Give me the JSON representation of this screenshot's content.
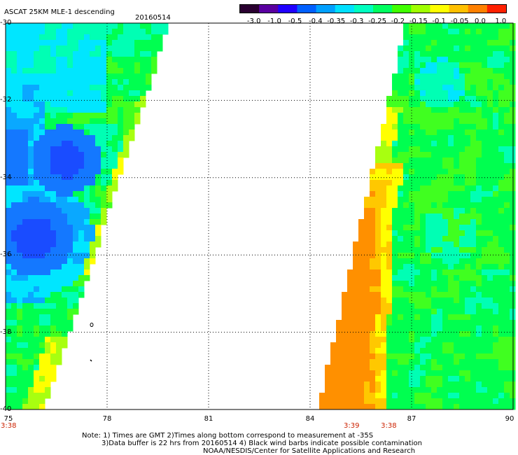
{
  "header": {
    "title": "ASCAT 25KM MLE-1 descending",
    "date": "20160514"
  },
  "colorbar": {
    "labels": [
      "-3.0",
      "-1.0",
      "-0.5",
      "-0.4",
      "-0.35",
      "-0.3",
      "-0.25",
      "-0.2",
      "-0.15",
      "-0.1",
      "-0.05",
      "0.0",
      "1.0"
    ],
    "colors": [
      "#2a0030",
      "#5a00a0",
      "#2000ff",
      "#0060ff",
      "#00a0ff",
      "#00e0ff",
      "#00ffc0",
      "#00ff60",
      "#40ff00",
      "#a0ff00",
      "#ffff00",
      "#ffc000",
      "#ff8000",
      "#ff2000"
    ]
  },
  "map": {
    "lat_labels": [
      "-30",
      "-32",
      "-34",
      "-36",
      "-38",
      "-40"
    ],
    "lon_labels": [
      "75",
      "78",
      "81",
      "84",
      "87",
      "90"
    ],
    "lat_range": [
      -40,
      -30
    ],
    "lon_range": [
      75,
      90
    ],
    "grid": true,
    "time_labels": [
      {
        "text": "3:38",
        "lon": 75
      },
      {
        "text": "3:39",
        "lon": 85.2
      },
      {
        "text": "3:38",
        "lon": 86.3
      }
    ]
  },
  "notes": {
    "line1": "Note: 1) Times are GMT 2)Times along bottom correspond to measurement at -35S",
    "line2": "3)Data buffer is 22 hrs from 20160514 4) Black wind barbs indicate possible contamination",
    "line3": "NOAA/NESDIS/Center for Satellite Applications and Research"
  }
}
